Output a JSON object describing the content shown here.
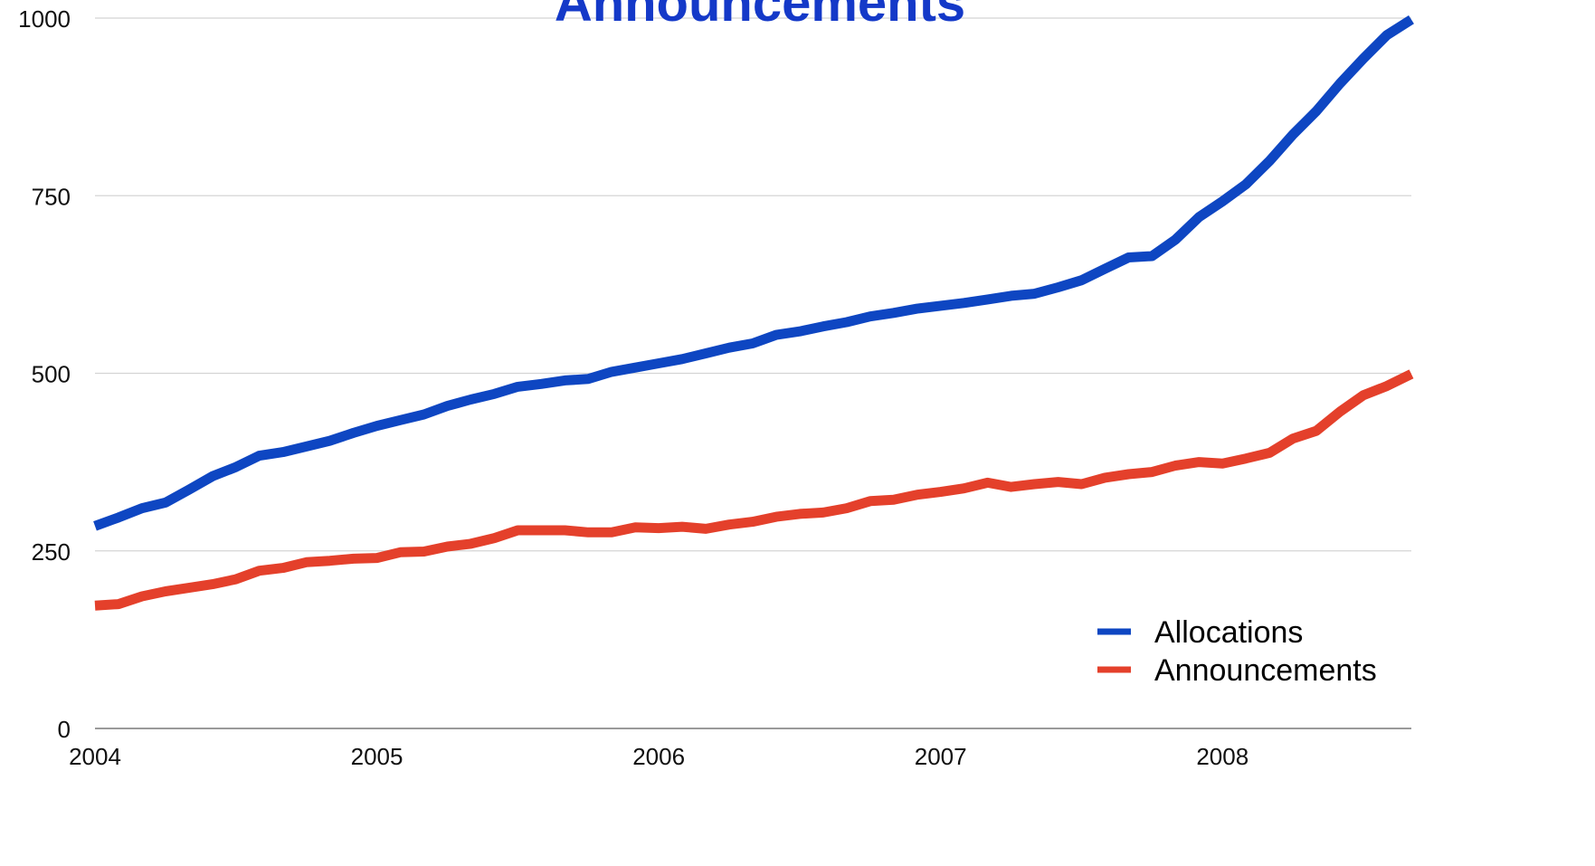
{
  "chart_data": {
    "type": "line",
    "title": "Announcements",
    "title_color": "#1439C8",
    "xlabel": "",
    "ylabel": "",
    "x_ticks": [
      "2004",
      "2005",
      "2006",
      "2007",
      "2008"
    ],
    "y_ticks": [
      "0",
      "250",
      "500",
      "750",
      "1000"
    ],
    "xlim": [
      2004.0,
      2008.67
    ],
    "ylim": [
      0,
      1000
    ],
    "grid": true,
    "legend_position": "bottom-right",
    "x": [
      2004.0,
      2004.083,
      2004.167,
      2004.25,
      2004.333,
      2004.417,
      2004.5,
      2004.583,
      2004.667,
      2004.75,
      2004.833,
      2004.917,
      2005.0,
      2005.083,
      2005.167,
      2005.25,
      2005.333,
      2005.417,
      2005.5,
      2005.583,
      2005.667,
      2005.75,
      2005.833,
      2005.917,
      2006.0,
      2006.083,
      2006.167,
      2006.25,
      2006.333,
      2006.417,
      2006.5,
      2006.583,
      2006.667,
      2006.75,
      2006.833,
      2006.917,
      2007.0,
      2007.083,
      2007.167,
      2007.25,
      2007.333,
      2007.417,
      2007.5,
      2007.583,
      2007.667,
      2007.75,
      2007.833,
      2007.917,
      2008.0,
      2008.083,
      2008.167,
      2008.25,
      2008.333,
      2008.417,
      2008.5,
      2008.583,
      2008.67
    ],
    "series": [
      {
        "name": "Allocations",
        "color": "#0E46C2",
        "values": [
          285,
          297,
          310,
          318,
          336,
          355,
          368,
          384,
          389,
          397,
          405,
          416,
          426,
          434,
          442,
          454,
          463,
          471,
          481,
          485,
          490,
          492,
          502,
          508,
          514,
          520,
          528,
          536,
          542,
          554,
          559,
          566,
          572,
          580,
          585,
          591,
          595,
          599,
          604,
          609,
          612,
          621,
          631,
          647,
          663,
          665,
          688,
          720,
          742,
          766,
          799,
          836,
          869,
          908,
          943,
          976,
          998
        ]
      },
      {
        "name": "Announcements",
        "color": "#E4402B",
        "values": [
          173,
          175,
          186,
          193,
          198,
          203,
          210,
          222,
          226,
          234,
          236,
          239,
          240,
          248,
          249,
          256,
          260,
          268,
          279,
          279,
          279,
          276,
          276,
          283,
          282,
          284,
          281,
          287,
          291,
          298,
          302,
          304,
          310,
          320,
          322,
          329,
          333,
          338,
          346,
          340,
          344,
          347,
          344,
          353,
          358,
          361,
          370,
          375,
          373,
          380,
          388,
          408,
          419,
          446,
          469,
          482,
          499
        ]
      }
    ]
  }
}
